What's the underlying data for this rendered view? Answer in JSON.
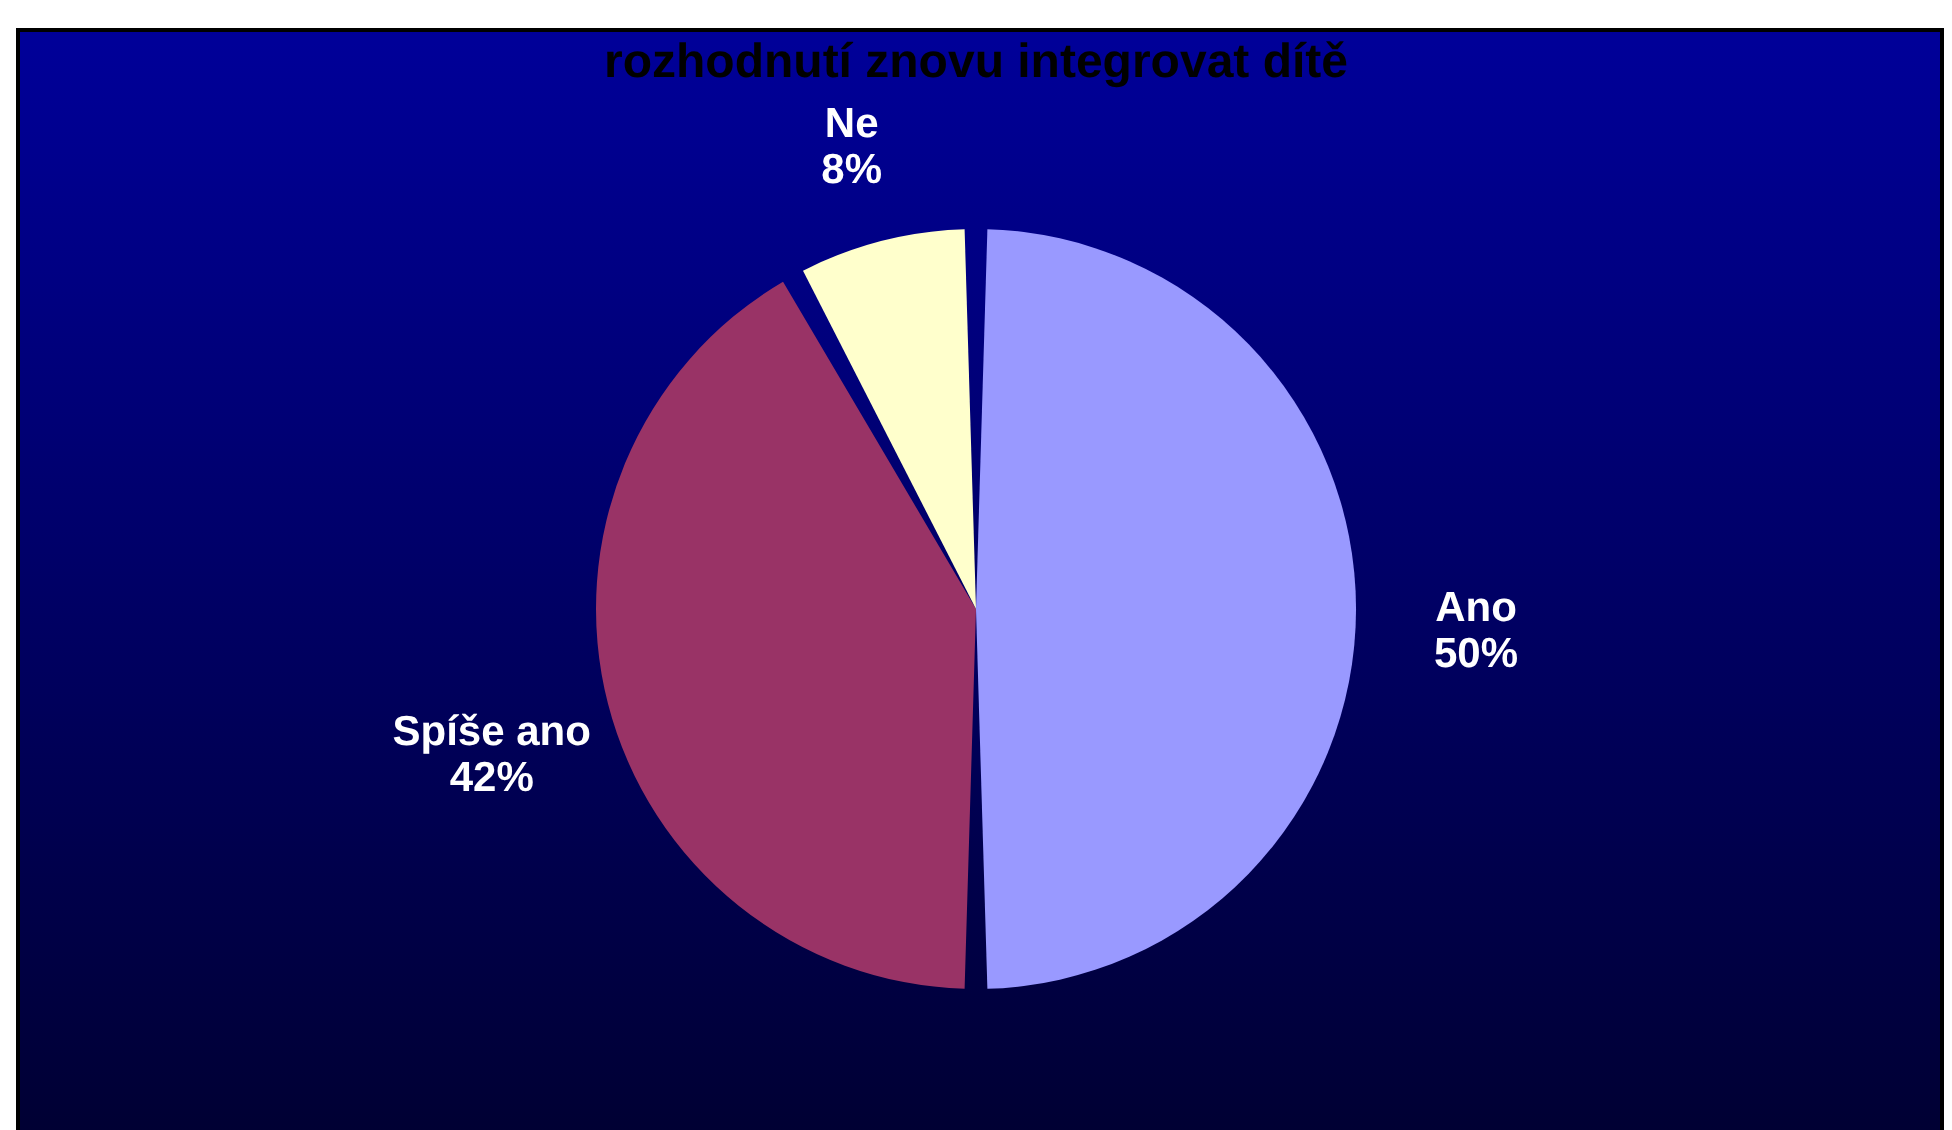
{
  "chart_data": {
    "type": "pie",
    "title": "rozhodnutí znovu integrovat dítě",
    "categories": [
      "Ano",
      "Spíše ano",
      "Ne"
    ],
    "values": [
      50,
      42,
      8
    ],
    "value_labels": [
      "50%",
      "42%",
      "8%"
    ],
    "colors": [
      "#9999ff",
      "#993366",
      "#ffffcc"
    ],
    "legend": false
  }
}
